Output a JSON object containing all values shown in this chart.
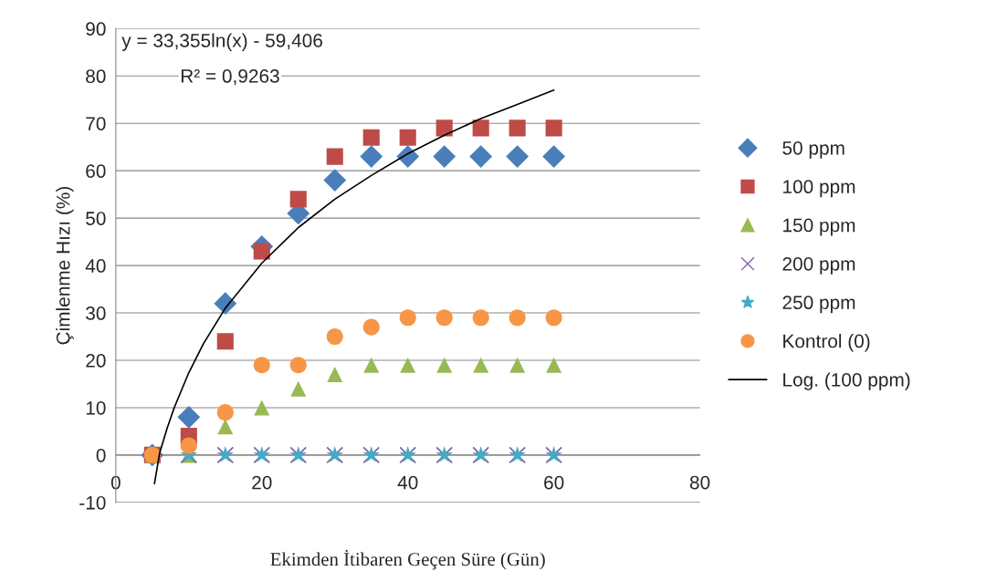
{
  "chart_data": {
    "type": "scatter",
    "xlabel": "Ekimden İtibaren Geçen Süre (Gün)",
    "ylabel": "Çimlenme Hızı (%)",
    "x": [
      5,
      10,
      15,
      20,
      25,
      30,
      35,
      40,
      45,
      50,
      55,
      60
    ],
    "xlim": [
      0,
      80
    ],
    "xticks": [
      0,
      20,
      40,
      60,
      80
    ],
    "ylim": [
      -10,
      90
    ],
    "yticks": [
      -10,
      0,
      10,
      20,
      30,
      40,
      50,
      60,
      70,
      80,
      90
    ],
    "grid": "y",
    "legend": "right",
    "annotations": [
      "y = 33,355ln(x) - 59,406",
      "R² = 0,9263"
    ],
    "series": [
      {
        "name": "50 ppm",
        "color": "#4a7ebb",
        "marker": "diamond",
        "values": [
          0,
          8,
          32,
          44,
          51,
          58,
          63,
          63,
          63,
          63,
          63,
          63
        ]
      },
      {
        "name": "100 ppm",
        "color": "#be4b48",
        "marker": "square",
        "values": [
          0,
          4,
          24,
          43,
          54,
          63,
          67,
          67,
          69,
          69,
          69,
          69
        ]
      },
      {
        "name": "150 ppm",
        "color": "#98b954",
        "marker": "triangle",
        "values": [
          0,
          0,
          6,
          10,
          14,
          17,
          19,
          19,
          19,
          19,
          19,
          19
        ]
      },
      {
        "name": "200 ppm",
        "color": "#7d60a0",
        "marker": "cross",
        "values": [
          null,
          0,
          0,
          0,
          0,
          0,
          0,
          0,
          0,
          0,
          0,
          0
        ]
      },
      {
        "name": "250 ppm",
        "color": "#46aac5",
        "marker": "star",
        "values": [
          null,
          0,
          0,
          0,
          0,
          0,
          0,
          0,
          0,
          0,
          0,
          0
        ]
      },
      {
        "name": "Kontrol (0)",
        "color": "#f79646",
        "marker": "circle",
        "values": [
          0,
          2,
          9,
          19,
          19,
          25,
          27,
          29,
          29,
          29,
          29,
          29
        ]
      },
      {
        "name": "Log. (100 ppm)",
        "type": "line",
        "color": "#000000",
        "marker": "none",
        "x": [
          5.3,
          6,
          7,
          8,
          10,
          12,
          15,
          20,
          25,
          30,
          35,
          40,
          45,
          50,
          55,
          60
        ],
        "values": [
          -6,
          0.4,
          5.5,
          10,
          17.4,
          23.5,
          31,
          40.5,
          48,
          54,
          59,
          63.6,
          67.5,
          71,
          74,
          77
        ]
      }
    ]
  }
}
